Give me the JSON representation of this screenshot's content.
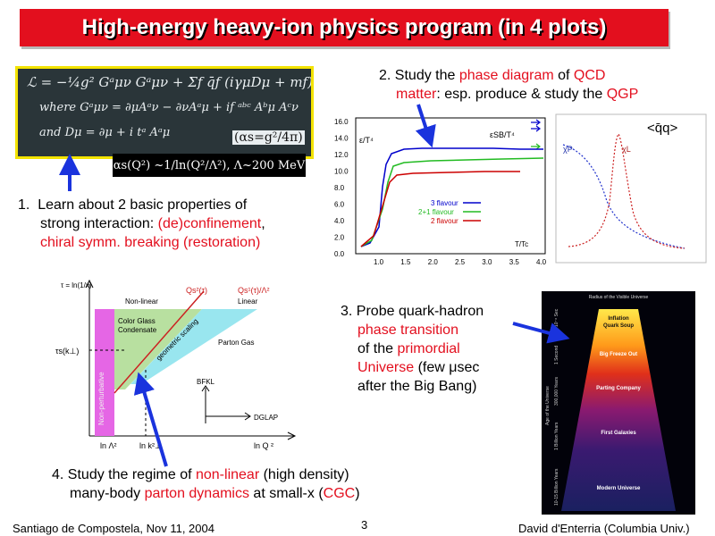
{
  "title": "High-energy heavy-ion physics program (in 4 plots)",
  "lagrangian": {
    "line1": "ℒ = −¼g² Gᵃμν Gᵃμν + Σf q̄f (iγμDμ + mf) qf",
    "line2": "where  Gᵃμν = ∂μAᵃν − ∂νAᵃμ + if ᵃᵇᶜ Aᵇμ Aᶜν",
    "line3": "and   Dμ = ∂μ + i tᵃ Aᵃμ",
    "alpha_s_def": "(αs=g²/4π)",
    "running": "αs(Q²) ~1/ln(Q²/Λ²), Λ~200 MeV"
  },
  "item1": {
    "number": "1.",
    "line1": "Learn about 2 basic properties of",
    "line2a": "strong interaction: ",
    "line2b": "(de)confinement",
    "line2c": ",",
    "line3": "chiral symm. breaking (restoration)"
  },
  "item2": {
    "number": "2.",
    "line1a": "Study the ",
    "line1b": "phase diagram",
    "line1c": " of ",
    "line1d": "QCD",
    "line2a": "matter",
    "line2b": ": esp. produce & study the ",
    "line2c": "QGP"
  },
  "item3": {
    "number": "3.",
    "line1": "Probe quark-hadron",
    "line2": "phase transition",
    "line3a": "of the ",
    "line3b": "primordial",
    "line4a": "Universe",
    "line4b": " (few μsec",
    "line5": "after the Big Bang)"
  },
  "item4": {
    "number": "4.",
    "line1a": "Study the regime of ",
    "line1b": "non-linear",
    "line1c": " (high density)",
    "line2a": "many-body ",
    "line2b": "parton dynamics",
    "line2c": " at small-x (",
    "line2d": "CGC",
    "line2e": ")"
  },
  "lattice_plot": {
    "eps_label": "ε/T⁴",
    "esb_label": "εSB/T⁴",
    "x_label": "T/Tc",
    "legend": [
      "3 flavour",
      "2+1 flavour",
      "2 flavour"
    ],
    "y_ticks": [
      "16.0",
      "14.0",
      "12.0",
      "10.0",
      "8.0",
      "6.0",
      "4.0",
      "2.0",
      "0.0"
    ],
    "x_ticks": [
      "1.0",
      "1.5",
      "2.0",
      "2.5",
      "3.0",
      "3.5",
      "4.0"
    ],
    "colors": [
      "#0000cc",
      "#22bb22",
      "#cc0000"
    ]
  },
  "chiral_plot": {
    "label": "<q̄q>",
    "label_l": "χ̄P",
    "label_r": "χL"
  },
  "cgc_diagram": {
    "y_axis": "τ = ln(1/x)",
    "qs2": "Qs²(τ)",
    "qs1": "Qs¹(τ)/Λ²",
    "non_linear": "Non-linear",
    "linear": "Linear",
    "cgc1": "Color Glass",
    "cgc2": "Condensate",
    "geom": "geometric scaling",
    "parton_gas": "Parton Gas",
    "tau_k": "τs(k⊥)",
    "non_pert": "Non-perturbative",
    "bfkl": "BFKL",
    "dglap": "DGLAP",
    "lnl": "ln Λ²",
    "lnk": "ln k²⊥",
    "lnq": "ln Q ²"
  },
  "universe": {
    "top": "Radius of the Visible Universe",
    "inflation": "Inflation",
    "quark_soup": "Quark Soup",
    "freeze": "Big Freeze Out",
    "parting": "Parting Company",
    "galaxies": "First Galaxies",
    "modern": "Modern Universe",
    "age_label": "Age of the Universe",
    "t1": "10⁻⁶ Sec",
    "t2": "1 Second",
    "t3": "300,000 Years",
    "t4": "1 Billion Years",
    "t5": "10-15 Billion Years"
  },
  "footer": {
    "left": "Santiago de Compostela, Nov 11, 2004",
    "page": "3",
    "right": "David d'Enterria (Columbia Univ.)"
  }
}
